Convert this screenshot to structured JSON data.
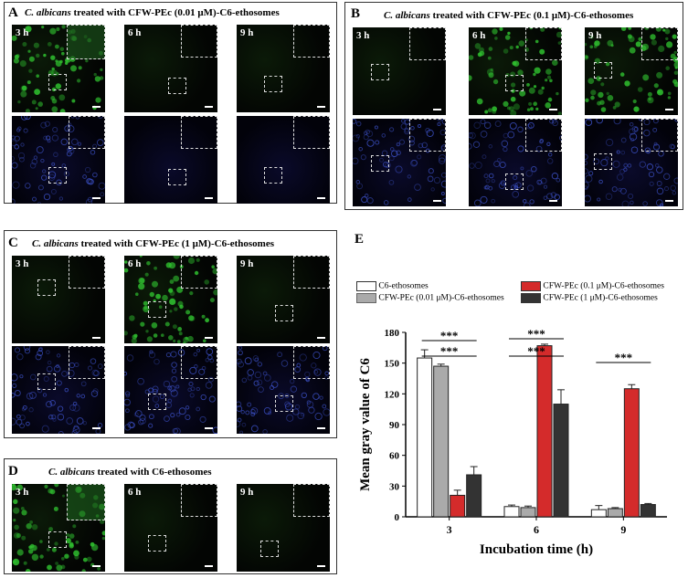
{
  "panels": {
    "A": {
      "letter": "A",
      "species": "C. albicans",
      "rest": " treated with CFW-PEc (0.01 μM)-C6-ethosomes",
      "times": [
        "3 h",
        "6 h",
        "9 h"
      ]
    },
    "B": {
      "letter": "B",
      "species": "C. albicans",
      "rest": " treated with CFW-PEc (0.1 μM)-C6-ethosomes",
      "times": [
        "3 h",
        "6 h",
        "9 h"
      ]
    },
    "C": {
      "letter": "C",
      "species": "C. albicans",
      "rest": " treated with CFW-PEc (1 μM)-C6-ethosomes",
      "times": [
        "3 h",
        "6 h",
        "9 h"
      ]
    },
    "D": {
      "letter": "D",
      "species": "C. albicans",
      "rest": " treated with C6-ethosomes",
      "times": [
        "3 h",
        "6 h",
        "9 h"
      ]
    }
  },
  "colors": {
    "c6": "#ffffff",
    "p001": "#aaaaaa",
    "p01": "#d42b2b",
    "p1": "#333333",
    "green": "#2fbf2f",
    "blue": "#3a4ec0"
  },
  "chart_data": {
    "panel_letter": "E",
    "type": "bar",
    "categories": [
      "3",
      "6",
      "9"
    ],
    "series": [
      {
        "name": "C6-ethosomes",
        "values": [
          155,
          10,
          7
        ],
        "errors": [
          8,
          1.5,
          4
        ],
        "color": "#ffffff"
      },
      {
        "name": "CFW-PEc (0.01 μM)-C6-ethosomes",
        "values": [
          147,
          9,
          8
        ],
        "errors": [
          2,
          1.5,
          1
        ],
        "color": "#aaaaaa"
      },
      {
        "name": "CFW-PEc (0.1 μM)-C6-ethosomes",
        "values": [
          21,
          167,
          125
        ],
        "errors": [
          5,
          1.5,
          4
        ],
        "color": "#d42b2b"
      },
      {
        "name": "CFW-PEc (1 μM)-C6-ethosomes",
        "values": [
          41,
          110,
          12
        ],
        "errors": [
          8,
          14,
          1
        ],
        "color": "#333333"
      }
    ],
    "xlabel": "Incubation time (h)",
    "ylabel": "Mean gray value of C6",
    "yticks": [
      "0",
      "30",
      "60",
      "90",
      "120",
      "150",
      "180"
    ],
    "ylim": [
      0,
      180
    ],
    "significance": [
      "***",
      "***",
      "***",
      "***",
      "***"
    ],
    "legend_position": "top"
  }
}
